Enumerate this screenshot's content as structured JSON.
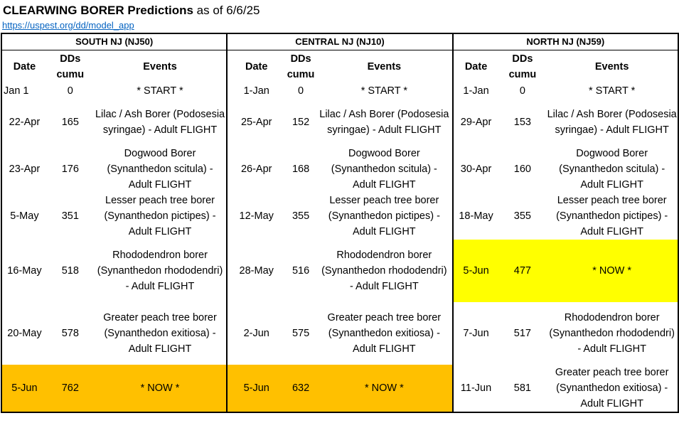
{
  "title": {
    "bold": "CLEARWING BORER Predictions",
    "rest": " as of 6/6/25"
  },
  "link": "https://uspest.org/dd/model_app",
  "headers": {
    "date": "Date",
    "dds_line1": "DDs",
    "dds_line2": "cumu",
    "events": "Events"
  },
  "regions": [
    {
      "name": "SOUTH NJ (NJ50)",
      "rows": [
        {
          "date": "Jan 1",
          "dds": "0",
          "event": [
            "* START *"
          ]
        },
        {
          "date": "22-Apr",
          "dds": "165",
          "event": [
            "Lilac / Ash Borer (Podosesia",
            "syringae) - Adult FLIGHT"
          ]
        },
        {
          "date": "23-Apr",
          "dds": "176",
          "event": [
            "Dogwood Borer",
            "(Synanthedon scitula) -",
            "Adult FLIGHT"
          ]
        },
        {
          "date": "5-May",
          "dds": "351",
          "event": [
            "Lesser peach tree borer",
            "(Synanthedon pictipes) -",
            "Adult FLIGHT"
          ]
        },
        {
          "date": "16-May",
          "dds": "518",
          "event": [
            "Rhododendron borer",
            "(Synanthedon rhododendri)",
            "- Adult FLIGHT"
          ]
        },
        {
          "date": "20-May",
          "dds": "578",
          "event": [
            "Greater peach tree borer",
            "(Synanthedon exitiosa) -",
            "Adult FLIGHT"
          ]
        },
        {
          "date": "5-Jun",
          "dds": "762",
          "event": [
            "* NOW *"
          ]
        }
      ]
    },
    {
      "name": "CENTRAL NJ (NJ10)",
      "rows": [
        {
          "date": "1-Jan",
          "dds": "0",
          "event": [
            "* START *"
          ]
        },
        {
          "date": "25-Apr",
          "dds": "152",
          "event": [
            "Lilac / Ash Borer (Podosesia",
            "syringae) - Adult FLIGHT"
          ]
        },
        {
          "date": "26-Apr",
          "dds": "168",
          "event": [
            "Dogwood Borer",
            "(Synanthedon scitula) -",
            "Adult FLIGHT"
          ]
        },
        {
          "date": "12-May",
          "dds": "355",
          "event": [
            "Lesser peach tree borer",
            "(Synanthedon pictipes) -",
            "Adult FLIGHT"
          ]
        },
        {
          "date": "28-May",
          "dds": "516",
          "event": [
            "Rhododendron borer",
            "(Synanthedon rhododendri)",
            "- Adult FLIGHT"
          ]
        },
        {
          "date": "2-Jun",
          "dds": "575",
          "event": [
            "Greater peach tree borer",
            "(Synanthedon exitiosa) -",
            "Adult FLIGHT"
          ]
        },
        {
          "date": "5-Jun",
          "dds": "632",
          "event": [
            "* NOW *"
          ]
        }
      ]
    },
    {
      "name": "NORTH NJ (NJ59)",
      "rows": [
        {
          "date": "1-Jan",
          "dds": "0",
          "event": [
            "* START *"
          ]
        },
        {
          "date": "29-Apr",
          "dds": "153",
          "event": [
            "Lilac / Ash Borer (Podosesia",
            "syringae) - Adult FLIGHT"
          ]
        },
        {
          "date": "30-Apr",
          "dds": "160",
          "event": [
            "Dogwood Borer",
            "(Synanthedon scitula) -",
            "Adult FLIGHT"
          ]
        },
        {
          "date": "18-May",
          "dds": "355",
          "event": [
            "Lesser peach tree borer",
            "(Synanthedon pictipes) -",
            "Adult FLIGHT"
          ]
        },
        {
          "date": "5-Jun",
          "dds": "477",
          "event": [
            "* NOW *"
          ]
        },
        {
          "date": "7-Jun",
          "dds": "517",
          "event": [
            "Rhododendron borer",
            "(Synanthedon rhododendri)",
            "- Adult FLIGHT"
          ]
        },
        {
          "date": "11-Jun",
          "dds": "581",
          "event": [
            "Greater peach tree borer",
            "(Synanthedon exitiosa) -",
            "Adult FLIGHT"
          ]
        }
      ]
    }
  ],
  "highlight_colors": {
    "now_orange": "#ffc000",
    "now_yellow": "#ffff00"
  }
}
